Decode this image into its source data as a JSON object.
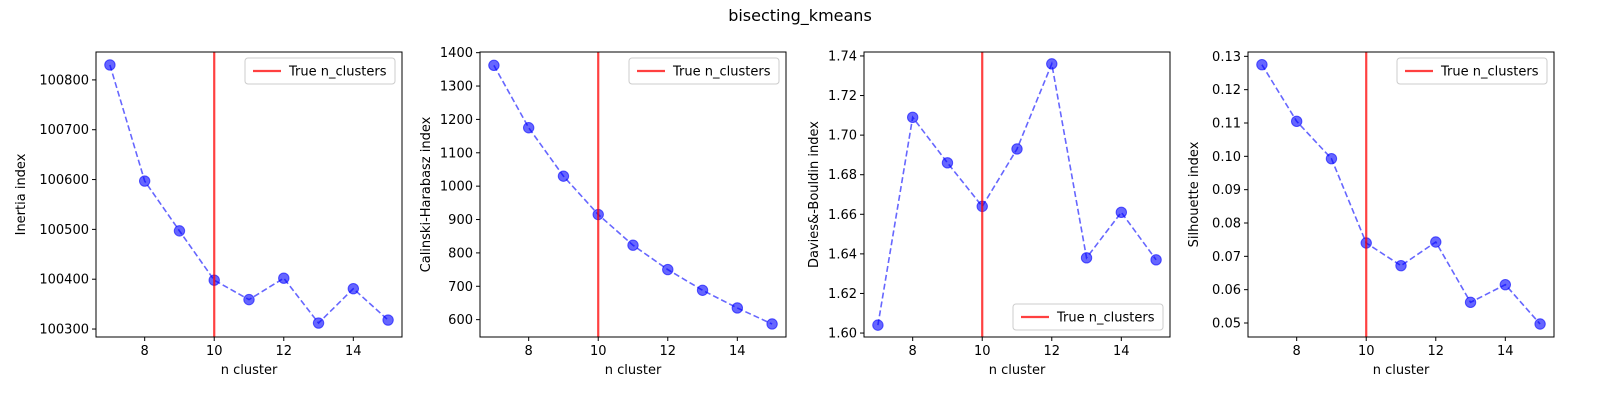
{
  "figure": {
    "suptitle": "bisecting_kmeans"
  },
  "chart_data": [
    {
      "type": "line",
      "xlabel": "n cluster",
      "ylabel": "Inertia index",
      "x": [
        7,
        8,
        9,
        10,
        11,
        12,
        13,
        14,
        15
      ],
      "values": [
        100830,
        100597,
        100497,
        100398,
        100359,
        100402,
        100312,
        100381,
        100318
      ],
      "xlim": [
        6.6,
        15.4
      ],
      "ylim": [
        100284,
        100856
      ],
      "xticks": [
        8,
        10,
        12,
        14
      ],
      "yticks": [
        100300,
        100400,
        100500,
        100600,
        100700,
        100800
      ],
      "vline": {
        "x": 10,
        "label": "True n_clusters"
      },
      "legend": "upper right"
    },
    {
      "type": "line",
      "xlabel": "n cluster",
      "ylabel": "Calinski-Harabasz index",
      "x": [
        7,
        8,
        9,
        10,
        11,
        12,
        13,
        14,
        15
      ],
      "values": [
        1362,
        1175,
        1030,
        915,
        823,
        750,
        688,
        635,
        587
      ],
      "xlim": [
        6.6,
        15.4
      ],
      "ylim": [
        548,
        1402
      ],
      "xticks": [
        8,
        10,
        12,
        14
      ],
      "yticks": [
        600,
        700,
        800,
        900,
        1000,
        1100,
        1200,
        1300,
        1400
      ],
      "vline": {
        "x": 10,
        "label": "True n_clusters"
      },
      "legend": "upper right"
    },
    {
      "type": "line",
      "xlabel": "n cluster",
      "ylabel": "Davies&-Bouldin index",
      "x": [
        7,
        8,
        9,
        10,
        11,
        12,
        13,
        14,
        15
      ],
      "values": [
        1.604,
        1.709,
        1.686,
        1.664,
        1.693,
        1.736,
        1.638,
        1.661,
        1.637
      ],
      "xlim": [
        6.6,
        15.4
      ],
      "ylim": [
        1.598,
        1.742
      ],
      "xticks": [
        8,
        10,
        12,
        14
      ],
      "yticks": [
        1.6,
        1.62,
        1.64,
        1.66,
        1.68,
        1.7,
        1.72,
        1.74
      ],
      "tick_decimals": 2,
      "vline": {
        "x": 10,
        "label": "True n_clusters"
      },
      "legend": "lower right"
    },
    {
      "type": "line",
      "xlabel": "n cluster",
      "ylabel": "Silhouette index",
      "x": [
        7,
        8,
        9,
        10,
        11,
        12,
        13,
        14,
        15
      ],
      "values": [
        0.1275,
        0.1105,
        0.0993,
        0.074,
        0.0672,
        0.0743,
        0.0562,
        0.0615,
        0.0497
      ],
      "xlim": [
        6.6,
        15.4
      ],
      "ylim": [
        0.0458,
        0.1313
      ],
      "xticks": [
        8,
        10,
        12,
        14
      ],
      "yticks": [
        0.05,
        0.06,
        0.07,
        0.08,
        0.09,
        0.1,
        0.11,
        0.12,
        0.13
      ],
      "tick_decimals": 2,
      "vline": {
        "x": 10,
        "label": "True n_clusters"
      },
      "legend": "upper right"
    }
  ],
  "colors": {
    "series": "#0000ff",
    "vline": "#ff0000"
  }
}
